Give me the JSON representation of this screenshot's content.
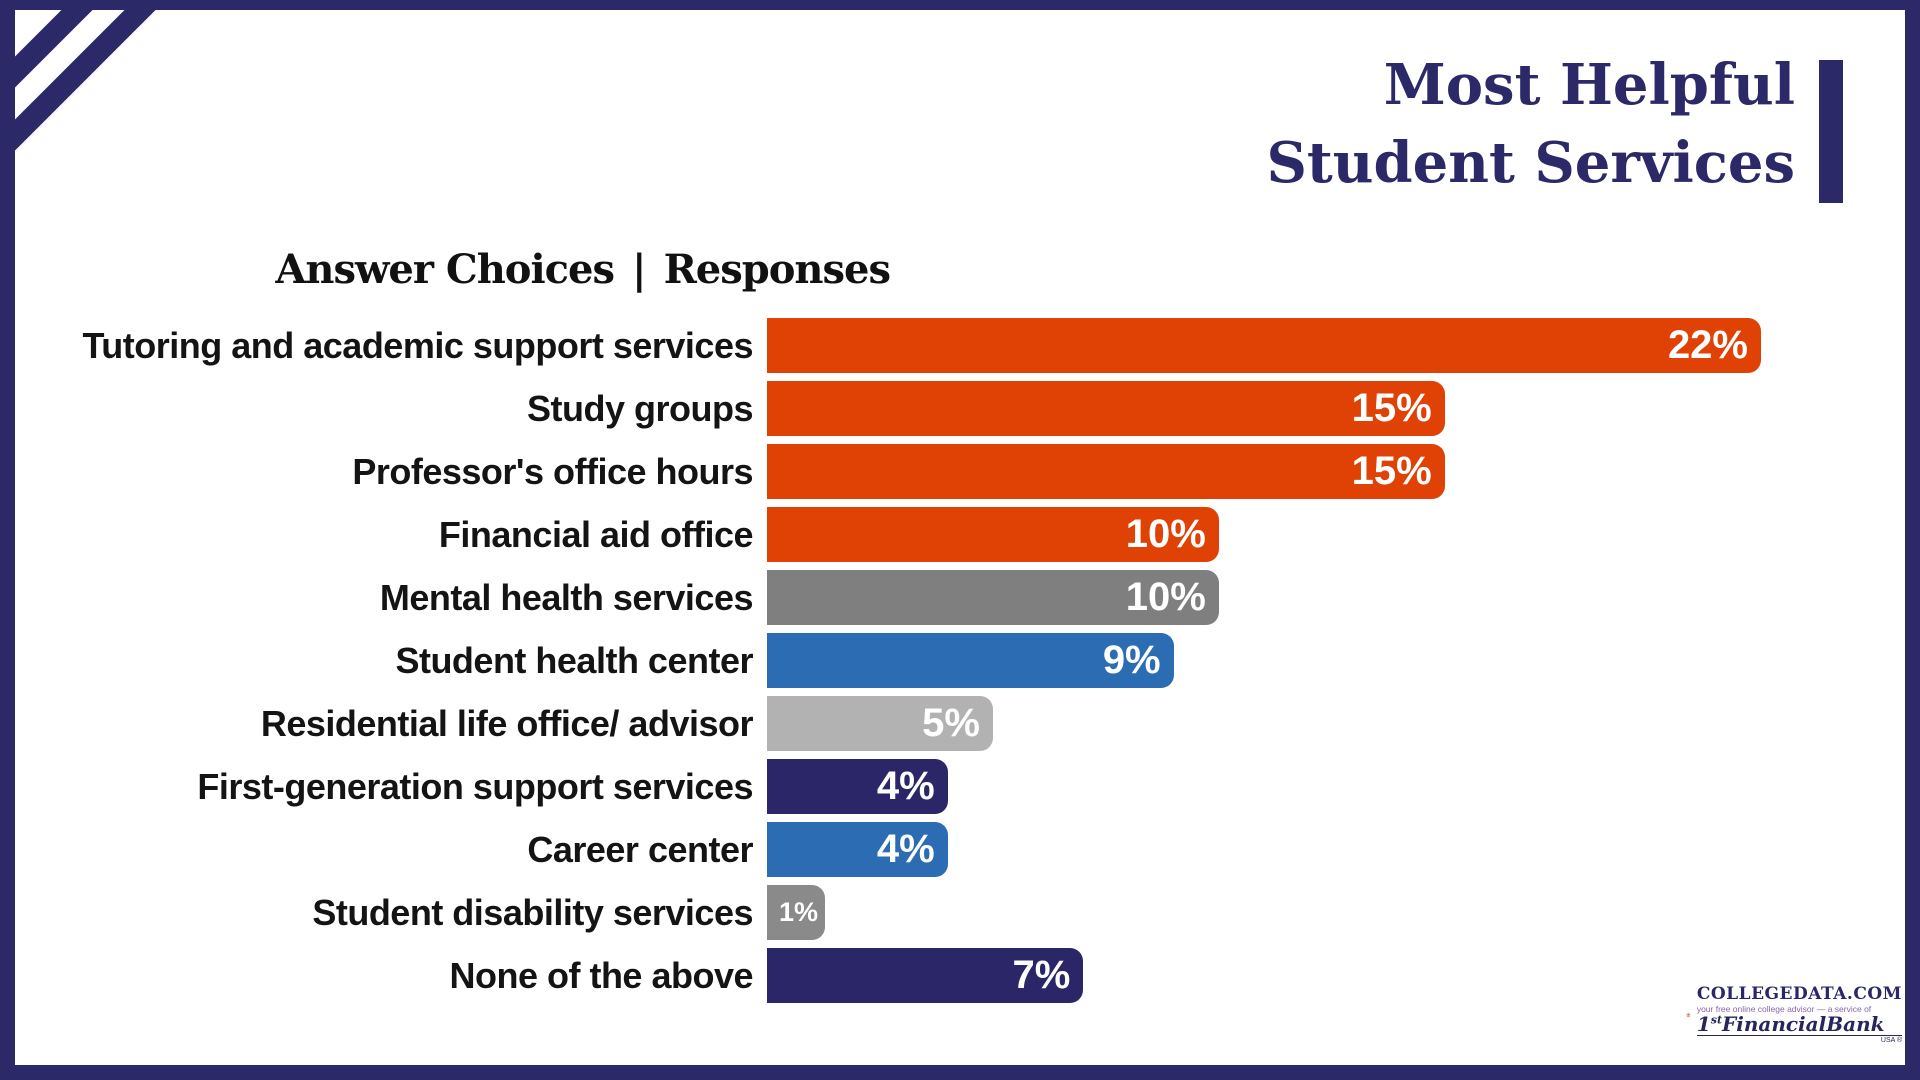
{
  "page": {
    "title_line1": "Most Helpful",
    "title_line2": "Student Services"
  },
  "table_header": {
    "answer_choices": "Answer Choices",
    "separator": "|",
    "responses": "Responses"
  },
  "chart_data": {
    "type": "bar",
    "orientation": "horizontal",
    "title": "Most Helpful Student Services",
    "xlabel": "Responses",
    "ylabel": "Answer Choices",
    "unit": "%",
    "xlim": [
      0,
      22
    ],
    "grid": false,
    "legend": false,
    "categories": [
      "Tutoring and academic support services",
      "Study groups",
      "Professor's office hours",
      "Financial aid office",
      "Mental health services",
      "Student health center",
      "Residential life office/ advisor",
      "First-generation support services",
      "Career center",
      "Student disability services",
      "None of the above"
    ],
    "values": [
      22,
      15,
      15,
      10,
      10,
      9,
      5,
      4,
      4,
      1,
      7
    ],
    "colors": [
      "#E04206",
      "#E04206",
      "#E04206",
      "#E04206",
      "#7F7F7F",
      "#2B6CB2",
      "#B2B2B2",
      "#2A2668",
      "#2B6CB2",
      "#8A8A8A",
      "#2A2668"
    ]
  },
  "logo": {
    "brand": "CollegeData.com",
    "tagline": "your free online college advisor — a service of",
    "bank_prefix": "1",
    "bank_sup": "st",
    "bank_name": "FinancialBank",
    "bank_sub": "USA ®"
  },
  "colors": {
    "navy": "#2B2968",
    "orange": "#E04206",
    "blue": "#2B6CB2",
    "gray": "#7F7F7F",
    "light_gray": "#B2B2B2",
    "value_text": "#FFFFFF",
    "label_text": "#141414"
  }
}
